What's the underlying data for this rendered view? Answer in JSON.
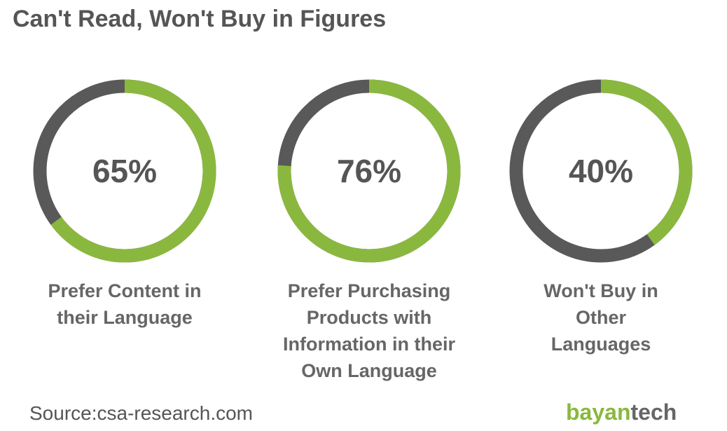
{
  "title": "Can't Read, Won't Buy in Figures",
  "source": "Source:csa-research.com",
  "logo": {
    "part1": "bayan",
    "part2": "tech"
  },
  "chart_data": [
    {
      "type": "donut",
      "values": [
        65
      ],
      "value_labels": [
        "65%"
      ],
      "label": "Prefer Content in their Language",
      "color": "#8ab83f",
      "track_color": "#595959"
    },
    {
      "type": "donut",
      "values": [
        76
      ],
      "value_labels": [
        "76%"
      ],
      "label": "Prefer Purchasing Products with Information in their Own Language",
      "color": "#8ab83f",
      "track_color": "#595959"
    },
    {
      "type": "donut",
      "values": [
        40
      ],
      "value_labels": [
        "40%"
      ],
      "label": "Won't Buy in Other Languages",
      "color": "#8ab83f",
      "track_color": "#595959"
    }
  ]
}
